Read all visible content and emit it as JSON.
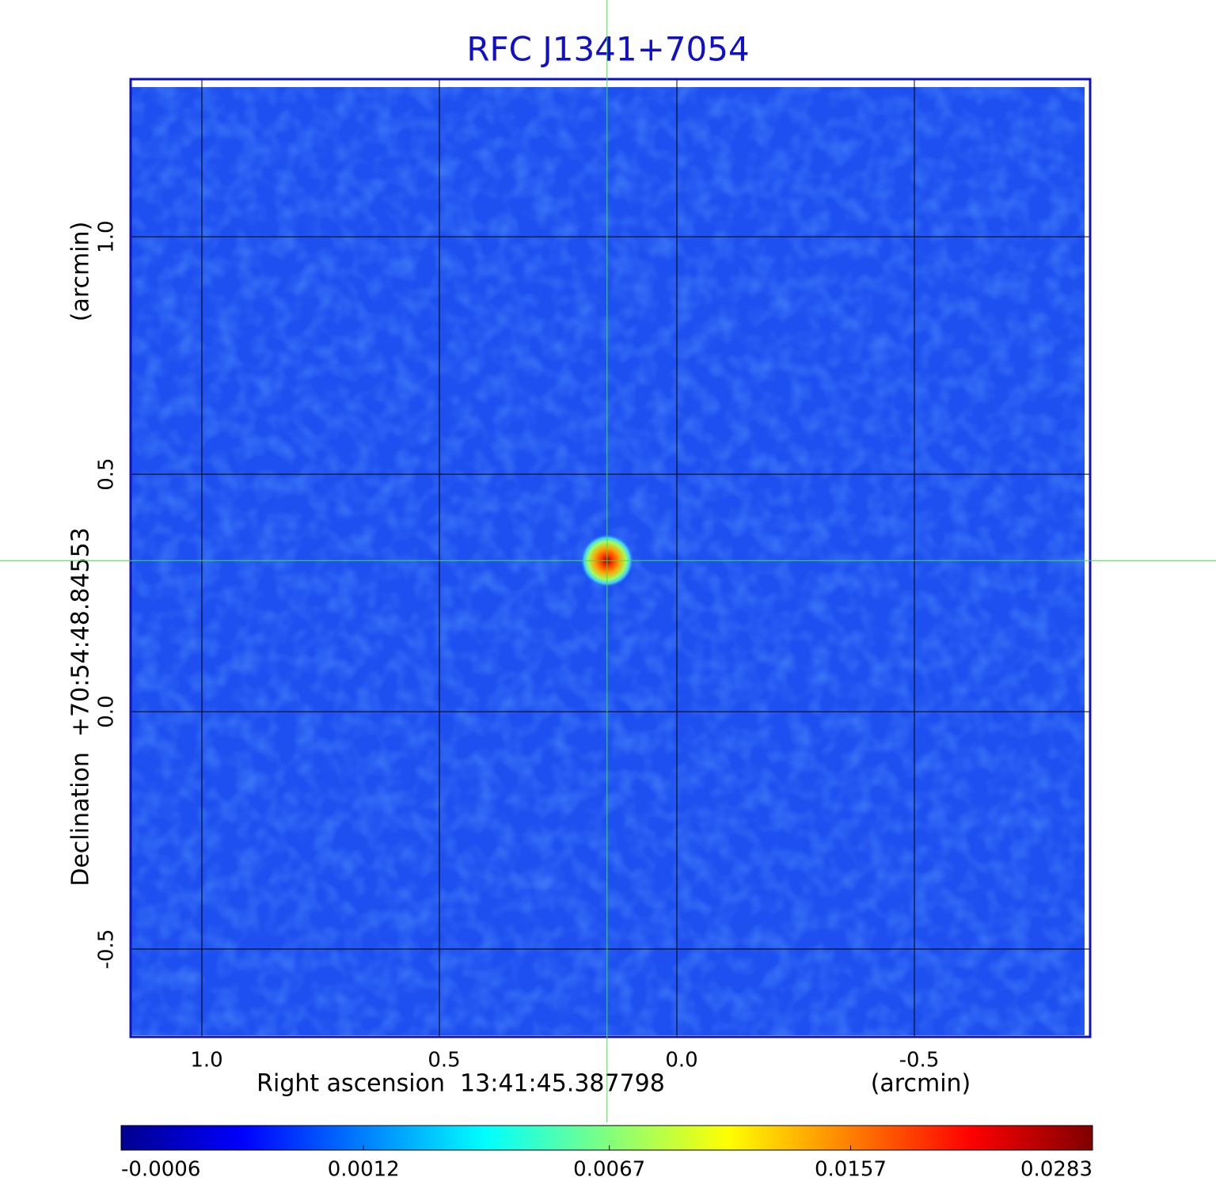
{
  "chart_data": {
    "type": "image",
    "title": "RFC J1341+7054",
    "xlabel": "Right ascension  13:41:45.387798",
    "xunit": "(arcmin)",
    "ylabel": "Declination  +70:54:48.84553",
    "yunit": "(arcmin)",
    "xlim": [
      1.15,
      -0.87
    ],
    "ylim": [
      -0.685,
      1.332
    ],
    "xticks": [
      {
        "value": 1,
        "label": "1.0"
      },
      0.5,
      {
        "value": 0,
        "label": "0.0"
      },
      -0.5
    ],
    "yticks": [
      -0.5,
      {
        "value": 0,
        "label": "0.0"
      },
      0.5,
      {
        "value": 1,
        "label": "1.0"
      }
    ],
    "grid": true,
    "source": {
      "x": 0.147,
      "y": 0.318,
      "peak": 0.0283
    },
    "colorbar": {
      "clim": [
        -0.0006,
        0.0283
      ],
      "scale": "sqrt",
      "ticks": [
        -0.0006,
        0.0012,
        0.0067,
        0.0157,
        0.0283
      ]
    }
  }
}
